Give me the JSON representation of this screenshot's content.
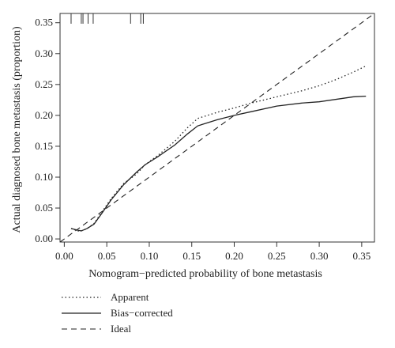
{
  "chart_data": {
    "type": "line",
    "title": "",
    "xlabel": "Nomogram−predicted probability of bone metastasis",
    "ylabel": "Actual diagnosed bone metastasis (proportion)",
    "xlim": [
      -0.005,
      0.365
    ],
    "ylim": [
      -0.005,
      0.365
    ],
    "x_ticks": [
      0.0,
      0.05,
      0.1,
      0.15,
      0.2,
      0.25,
      0.3,
      0.35
    ],
    "x_tick_labels": [
      "0.00",
      "0.05",
      "0.10",
      "0.15",
      "0.20",
      "0.25",
      "0.30",
      "0.35"
    ],
    "y_ticks": [
      0.0,
      0.05,
      0.1,
      0.15,
      0.2,
      0.25,
      0.3,
      0.35
    ],
    "y_tick_labels": [
      "0.00",
      "0.05",
      "0.10",
      "0.15",
      "0.20",
      "0.25",
      "0.30",
      "0.35"
    ],
    "grid": false,
    "legend_position": "bottom-left, below plot",
    "rug_x": [
      0.008,
      0.02,
      0.022,
      0.028,
      0.034,
      0.078,
      0.09,
      0.093
    ],
    "series": [
      {
        "name": "Apparent",
        "style": "dotted",
        "x": [
          0.008,
          0.016,
          0.02,
          0.027,
          0.035,
          0.045,
          0.055,
          0.07,
          0.085,
          0.095,
          0.11,
          0.13,
          0.145,
          0.157,
          0.18,
          0.2,
          0.22,
          0.25,
          0.28,
          0.3,
          0.32,
          0.34,
          0.355
        ],
        "values": [
          0.017,
          0.013,
          0.013,
          0.017,
          0.025,
          0.045,
          0.065,
          0.09,
          0.105,
          0.12,
          0.135,
          0.158,
          0.18,
          0.195,
          0.205,
          0.212,
          0.22,
          0.23,
          0.24,
          0.248,
          0.258,
          0.27,
          0.28
        ]
      },
      {
        "name": "Bias−corrected",
        "style": "solid",
        "x": [
          0.008,
          0.016,
          0.02,
          0.027,
          0.035,
          0.045,
          0.055,
          0.07,
          0.085,
          0.095,
          0.11,
          0.13,
          0.145,
          0.157,
          0.18,
          0.2,
          0.22,
          0.25,
          0.28,
          0.3,
          0.32,
          0.34,
          0.355
        ],
        "values": [
          0.017,
          0.014,
          0.013,
          0.017,
          0.024,
          0.043,
          0.063,
          0.088,
          0.108,
          0.12,
          0.133,
          0.152,
          0.17,
          0.183,
          0.193,
          0.2,
          0.206,
          0.215,
          0.22,
          0.222,
          0.226,
          0.23,
          0.231
        ]
      },
      {
        "name": "Ideal",
        "style": "dashed",
        "x": [
          -0.005,
          0.365
        ],
        "values": [
          -0.005,
          0.365
        ]
      }
    ]
  }
}
